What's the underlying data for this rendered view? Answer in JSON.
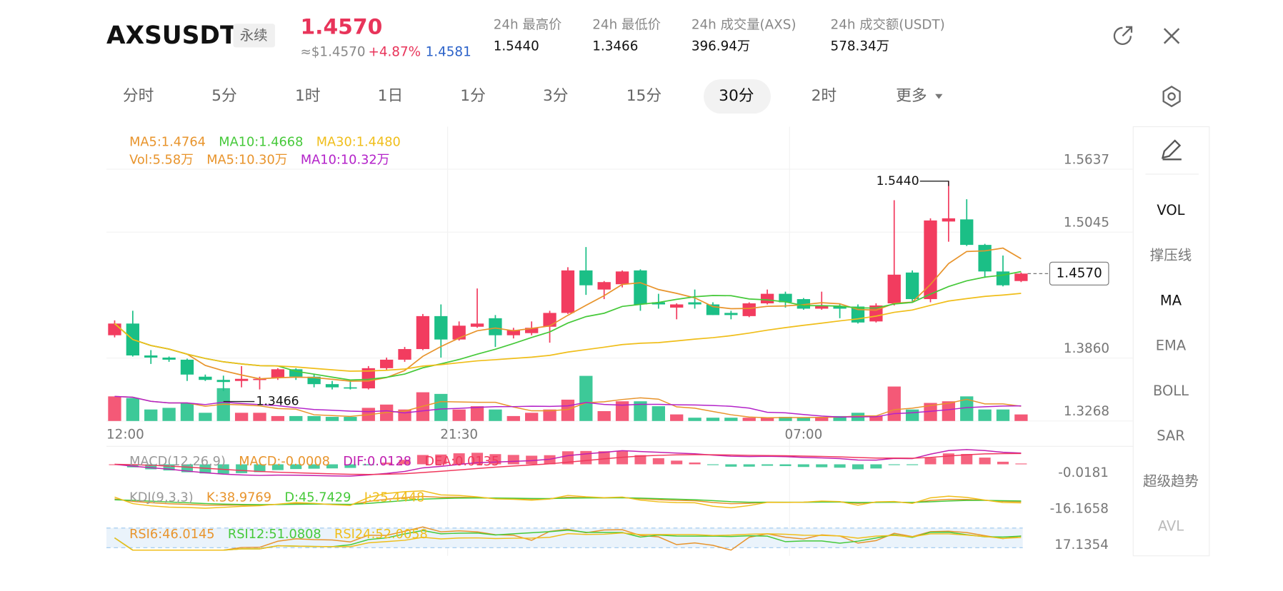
{
  "header": {
    "symbol": "AXSUSDT",
    "tag": "永续",
    "price": "1.4570",
    "approx": "≈$1.4570",
    "change": "+4.87%",
    "mark_price": "1.4581",
    "stats": [
      {
        "label": "24h 最高价",
        "value": "1.5440"
      },
      {
        "label": "24h 最低价",
        "value": "1.3466"
      },
      {
        "label": "24h 成交量(AXS)",
        "value": "396.94万"
      },
      {
        "label": "24h 成交额(USDT)",
        "value": "578.34万"
      }
    ]
  },
  "tabs": [
    "分时",
    "5分",
    "1时",
    "1日",
    "1分",
    "3分",
    "15分",
    "30分",
    "2时",
    "更多"
  ],
  "active_tab": 7,
  "side_menu": [
    "VOL",
    "撑压线",
    "MA",
    "EMA",
    "BOLL",
    "SAR",
    "超级趋势",
    "AVL"
  ],
  "indicators": {
    "main": [
      {
        "text": "MA5:1.4764",
        "color": "#e8942c"
      },
      {
        "text": "MA10:1.4668",
        "color": "#46c93a"
      },
      {
        "text": "MA30:1.4480",
        "color": "#f0be1a"
      }
    ],
    "vol": [
      {
        "text": "Vol:5.58万",
        "color": "#e8942c"
      },
      {
        "text": "MA5:10.30万",
        "color": "#e8942c"
      },
      {
        "text": "MA10:10.32万",
        "color": "#b322c9"
      }
    ],
    "macd": [
      {
        "text": "MACD(12,26,9)",
        "color": "#999999"
      },
      {
        "text": "MACD:-0.0008",
        "color": "#e8942c"
      },
      {
        "text": "DIF:0.0128",
        "color": "#c020b0"
      },
      {
        "text": "DEA:0.0135",
        "color": "#f0395d"
      }
    ],
    "kdj": [
      {
        "text": "KDJ(9,3,3)",
        "color": "#999999"
      },
      {
        "text": "K:38.9769",
        "color": "#e8942c"
      },
      {
        "text": "D:45.7429",
        "color": "#46c93a"
      },
      {
        "text": "J:25.4448",
        "color": "#f0be1a"
      }
    ],
    "rsi": [
      {
        "text": "RSI6:46.0145",
        "color": "#e8942c"
      },
      {
        "text": "RSI12:51.0808",
        "color": "#46c93a"
      },
      {
        "text": "RSI24:52.0058",
        "color": "#f0be1a"
      }
    ],
    "macd_axis": "-0.0181",
    "kdj_axis": "-16.1658",
    "rsi_axis": "17.1354"
  },
  "chart_data": {
    "type": "candlestick",
    "categories": [
      "12:00",
      null,
      null,
      null,
      null,
      null,
      null,
      null,
      null,
      null,
      null,
      null,
      null,
      null,
      null,
      null,
      null,
      null,
      null,
      "21:30",
      null,
      null,
      null,
      null,
      null,
      null,
      null,
      null,
      null,
      null,
      null,
      null,
      null,
      null,
      null,
      null,
      null,
      null,
      "07:00",
      null,
      null,
      null,
      null,
      null,
      null,
      null,
      null,
      null,
      null,
      null,
      null
    ],
    "open": [
      1.399,
      1.41,
      1.38,
      1.378,
      1.376,
      1.36,
      1.357,
      1.356,
      1.357,
      1.359,
      1.367,
      1.36,
      1.353,
      1.35,
      1.349,
      1.368,
      1.376,
      1.386,
      1.417,
      1.395,
      1.407,
      1.415,
      1.399,
      1.401,
      1.407,
      1.42,
      1.46,
      1.442,
      1.447,
      1.46,
      1.43,
      1.425,
      1.43,
      1.428,
      1.42,
      1.417,
      1.429,
      1.438,
      1.433,
      1.424,
      1.426,
      1.426,
      1.412,
      1.429,
      1.458,
      1.433,
      1.506,
      1.508,
      1.484,
      1.459,
      1.45
    ],
    "high": [
      1.413,
      1.422,
      1.385,
      1.379,
      1.377,
      1.362,
      1.361,
      1.37,
      1.36,
      1.368,
      1.368,
      1.362,
      1.356,
      1.356,
      1.37,
      1.378,
      1.388,
      1.419,
      1.428,
      1.412,
      1.443,
      1.418,
      1.406,
      1.412,
      1.422,
      1.463,
      1.482,
      1.45,
      1.46,
      1.461,
      1.438,
      1.429,
      1.442,
      1.43,
      1.422,
      1.43,
      1.442,
      1.44,
      1.434,
      1.44,
      1.429,
      1.428,
      1.429,
      1.526,
      1.46,
      1.509,
      1.544,
      1.527,
      1.485,
      1.474,
      1.458
    ],
    "low": [
      1.397,
      1.379,
      1.372,
      1.374,
      1.356,
      1.356,
      1.3466,
      1.35,
      1.348,
      1.357,
      1.357,
      1.35,
      1.348,
      1.348,
      1.348,
      1.366,
      1.374,
      1.385,
      1.378,
      1.394,
      1.406,
      1.388,
      1.396,
      1.399,
      1.392,
      1.419,
      1.437,
      1.433,
      1.444,
      1.422,
      1.424,
      1.414,
      1.424,
      1.418,
      1.414,
      1.416,
      1.428,
      1.425,
      1.423,
      1.423,
      1.415,
      1.41,
      1.411,
      1.427,
      1.43,
      1.43,
      1.487,
      1.483,
      1.453,
      1.445,
      1.449
    ],
    "close": [
      1.41,
      1.38,
      1.378,
      1.376,
      1.362,
      1.357,
      1.355,
      1.358,
      1.358,
      1.367,
      1.36,
      1.353,
      1.35,
      1.349,
      1.368,
      1.376,
      1.386,
      1.417,
      1.395,
      1.408,
      1.41,
      1.399,
      1.404,
      1.406,
      1.42,
      1.46,
      1.446,
      1.449,
      1.459,
      1.428,
      1.428,
      1.428,
      1.428,
      1.418,
      1.418,
      1.429,
      1.438,
      1.43,
      1.424,
      1.427,
      1.424,
      1.411,
      1.427,
      1.456,
      1.433,
      1.507,
      1.509,
      1.484,
      1.459,
      1.446,
      1.457
    ],
    "volume": [
      21,
      19.6,
      9.8,
      11.2,
      15.4,
      7,
      28,
      7,
      7,
      4.2,
      4.2,
      4.2,
      3.5,
      3.5,
      11.2,
      14,
      9.8,
      24.5,
      23.1,
      9.8,
      12.6,
      9.8,
      4.2,
      7,
      9.8,
      18.2,
      38.5,
      8.4,
      16.8,
      16.8,
      12.6,
      5.6,
      2.8,
      2.8,
      2.8,
      2.8,
      2.8,
      3.5,
      2.8,
      3.5,
      4.2,
      7,
      4.2,
      29.4,
      9.8,
      15.4,
      16.8,
      21,
      9.8,
      9.8,
      5.58
    ],
    "up_color": "#f23c5f",
    "down_color": "#1bbf86",
    "ylim": [
      1.3145,
      1.5952
    ],
    "yticks": [
      1.5637,
      1.5045,
      {
        "value": 1.386,
        "label": "1.3860"
      },
      1.3268
    ],
    "vlim": [
      0,
      60
    ],
    "high_marker": {
      "value": 1.544,
      "label": "1.5440"
    },
    "low_marker": {
      "value": 1.3466,
      "label": "1.3466"
    },
    "last_price": {
      "value": 1.457,
      "label": "1.4570"
    },
    "grid": true
  }
}
